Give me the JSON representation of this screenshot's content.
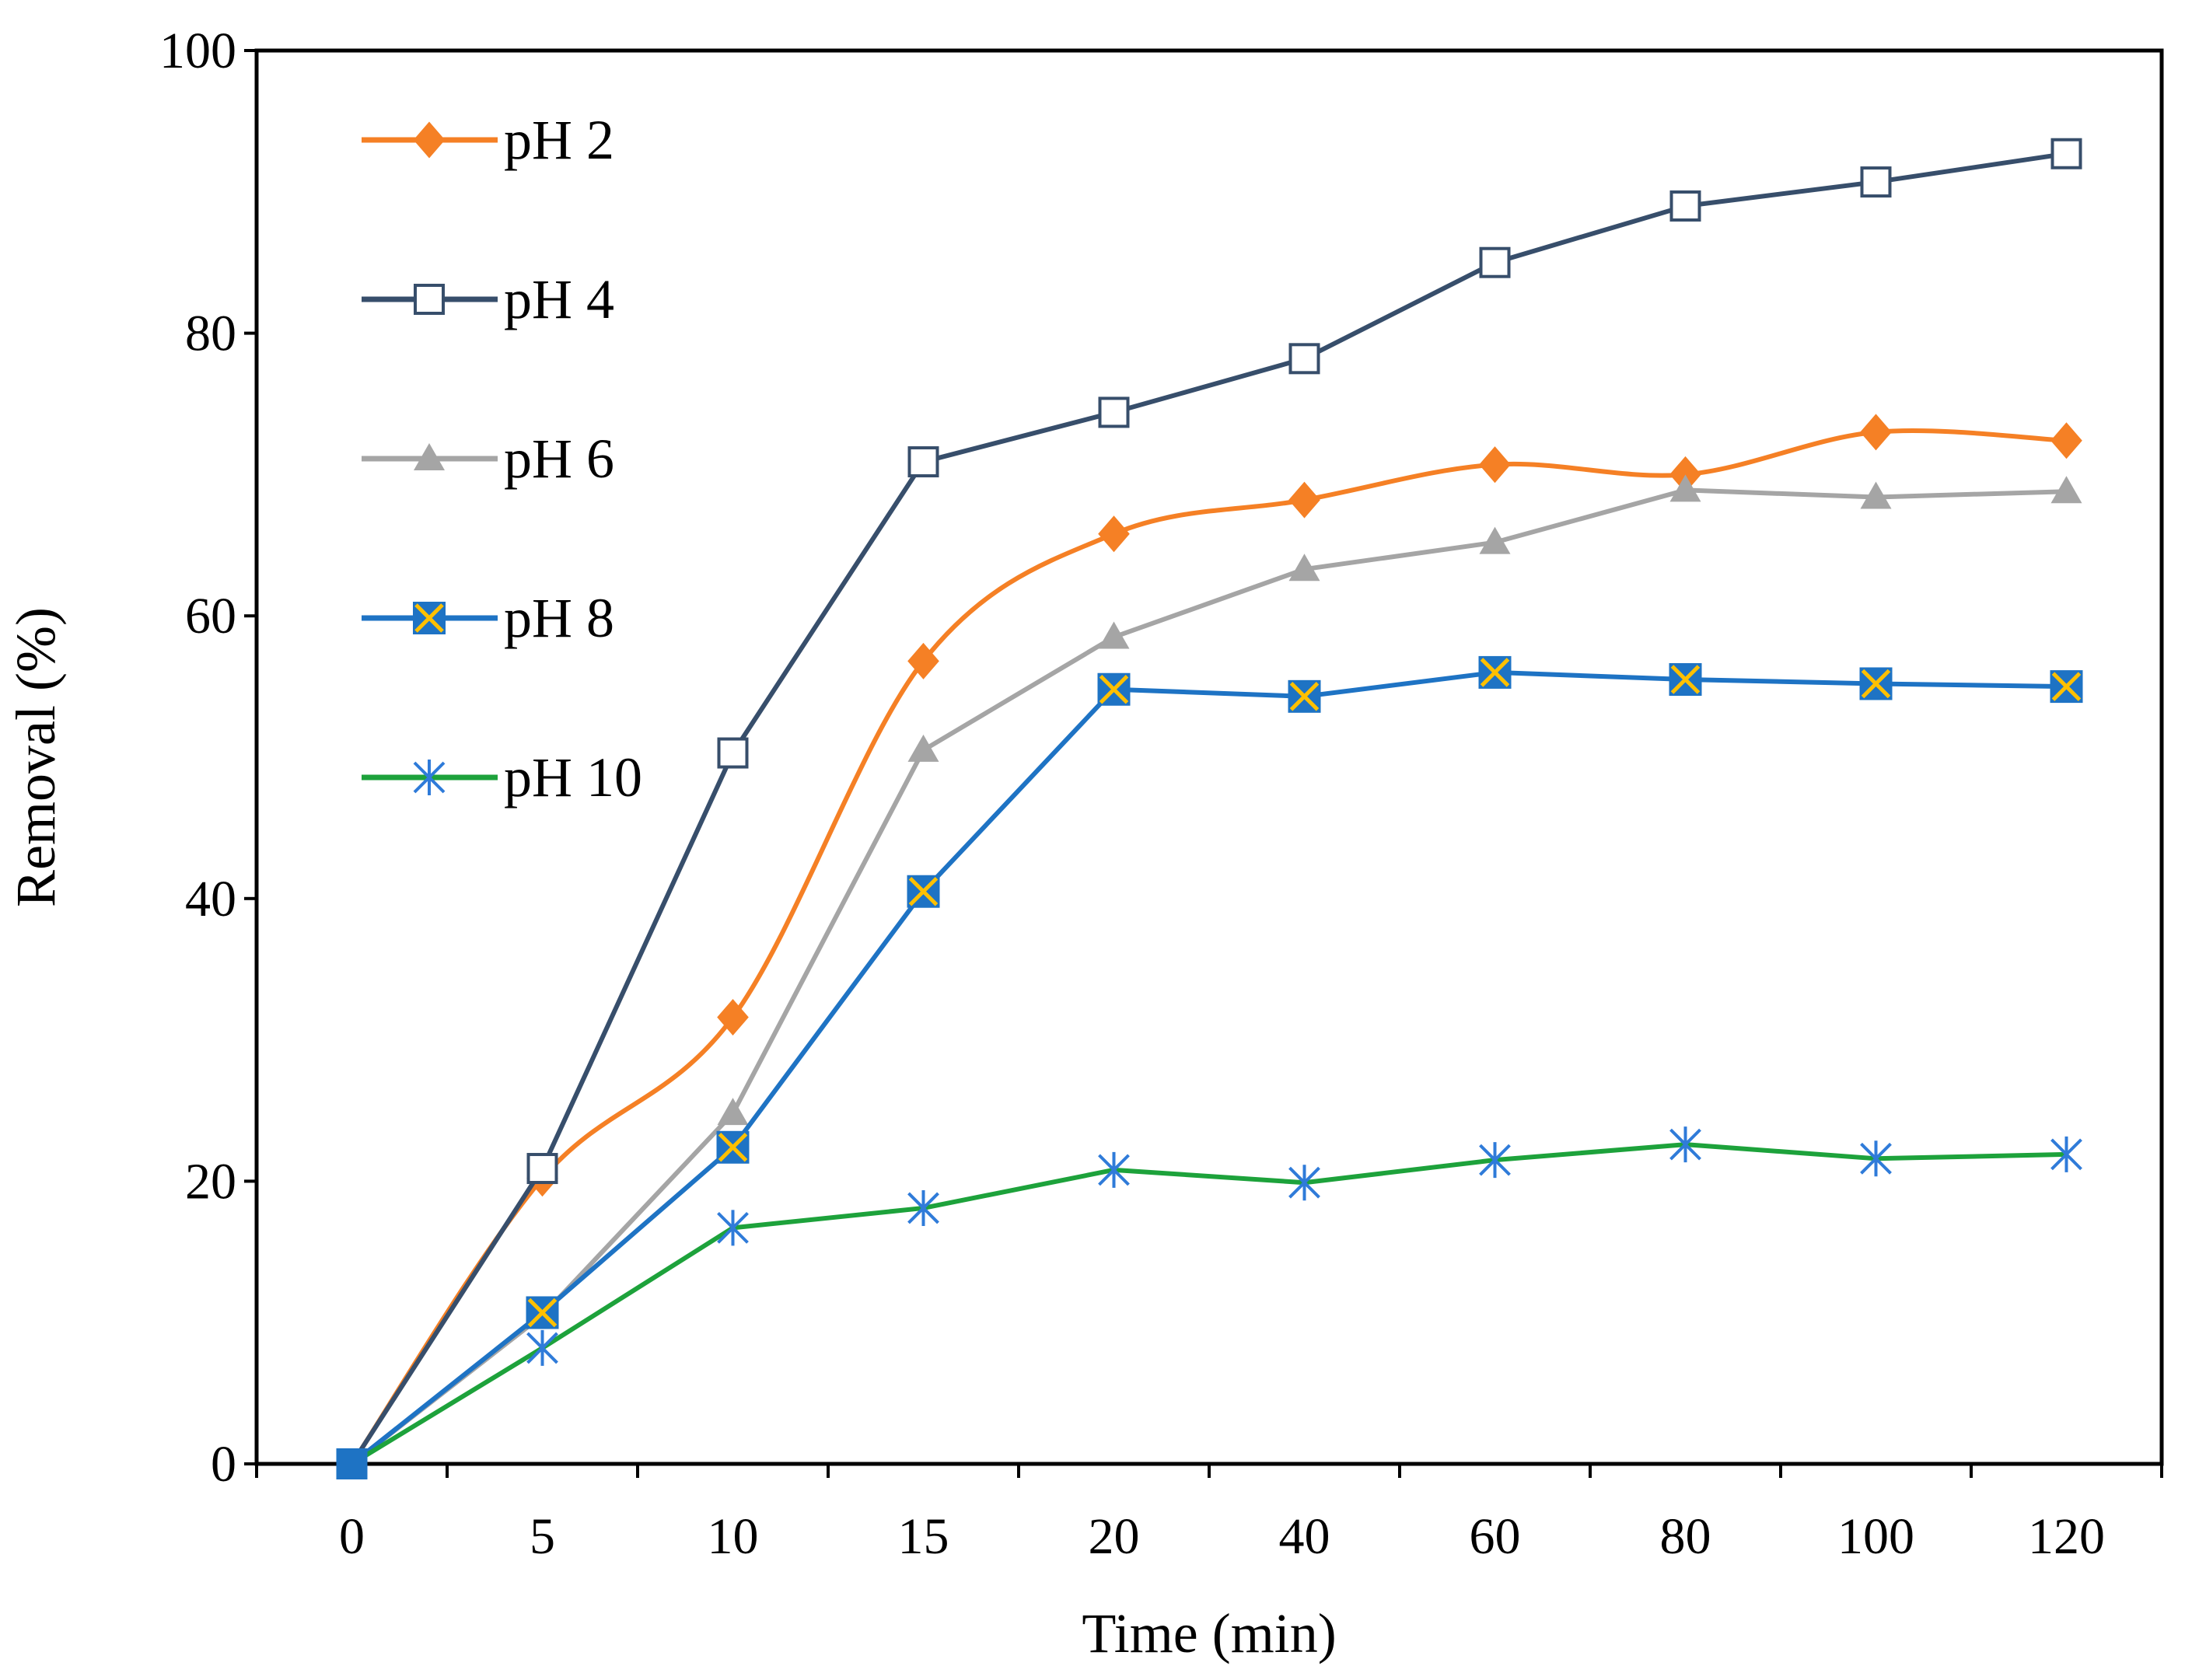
{
  "chart_data": {
    "type": "line",
    "title": "",
    "xlabel": "Time (min)",
    "ylabel": "Removal (%)",
    "categories": [
      "0",
      "5",
      "10",
      "15",
      "20",
      "40",
      "60",
      "80",
      "100",
      "120"
    ],
    "ylim": [
      0,
      100
    ],
    "yticks": [
      "0",
      "20",
      "40",
      "60",
      "80",
      "100"
    ],
    "grid": false,
    "legend_position": "top-left",
    "series": [
      {
        "name": "pH 2",
        "color": "#F58025",
        "marker": "diamond",
        "smooth": true,
        "values": [
          0,
          20.2,
          31.6,
          56.8,
          65.8,
          68.2,
          70.7,
          70.0,
          73.0,
          72.4
        ]
      },
      {
        "name": "pH 4",
        "color": "#374E6B",
        "marker": "open-square",
        "smooth": false,
        "values": [
          0,
          20.9,
          50.3,
          70.9,
          74.4,
          78.2,
          85.0,
          89.0,
          90.7,
          92.7
        ]
      },
      {
        "name": "pH 6",
        "color": "#A5A5A5",
        "marker": "triangle",
        "smooth": false,
        "values": [
          0,
          10.5,
          24.8,
          50.5,
          58.5,
          63.3,
          65.2,
          68.9,
          68.4,
          68.8
        ]
      },
      {
        "name": "pH 8",
        "color": "#1E73C4",
        "marker": "x-square",
        "marker_accent": "#FFC000",
        "smooth": false,
        "values": [
          0,
          10.7,
          22.4,
          40.5,
          54.8,
          54.3,
          56.0,
          55.5,
          55.2,
          55.0
        ]
      },
      {
        "name": "pH 10",
        "color": "#1DA23B",
        "marker": "asterisk",
        "marker_color": "#2F7BD9",
        "smooth": false,
        "values": [
          0,
          8.2,
          16.7,
          18.1,
          20.8,
          19.9,
          21.5,
          22.6,
          21.6,
          21.9
        ]
      }
    ]
  }
}
